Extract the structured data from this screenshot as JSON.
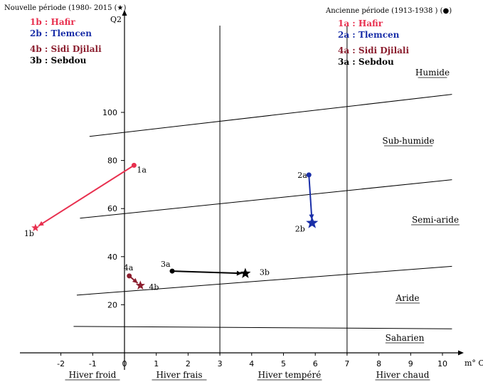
{
  "chart_data": {
    "type": "scatter",
    "xlabel": "m° C",
    "ylabel": "Q2",
    "xlim": [
      -3,
      11
    ],
    "ylim": [
      0,
      120
    ],
    "x_ticks": [
      "-2",
      "-1",
      "0",
      "1",
      "2",
      "3",
      "4",
      "5",
      "6",
      "7",
      "8",
      "9",
      "10"
    ],
    "y_ticks": [
      "20",
      "40",
      "60",
      "80",
      "100"
    ],
    "legend_new": {
      "title": "Nouvelle période (1980- 2015 (★)",
      "items": [
        {
          "label": "1b : Hafir",
          "color": "#e8304f"
        },
        {
          "label": "2b : Tlemcen",
          "color": "#1a2fa8"
        },
        {
          "label": "4b : Sidi Djilali",
          "color": "#8b1e2e"
        },
        {
          "label": "3b : Sebdou",
          "color": "#000000"
        }
      ]
    },
    "legend_old": {
      "title": "Ancienne période (1913-1938 ) (●)",
      "items": [
        {
          "label": "1a : Hafir",
          "color": "#e8304f"
        },
        {
          "label": "2a : Tlemcen",
          "color": "#1a2fa8"
        },
        {
          "label": "4a : Sidi Djilali",
          "color": "#8b1e2e"
        },
        {
          "label": "3a : Sebdou",
          "color": "#000000"
        }
      ]
    },
    "bioclimatic_zones": [
      "Humide",
      "Sub-humide",
      "Semi-aride",
      "Aride",
      "Saharien"
    ],
    "winter_types": [
      "Hiver froid",
      "Hiver frais",
      "Hiver tempéré",
      "Hiver chaud"
    ],
    "winter_boundaries": [
      3,
      7
    ],
    "zone_boundaries": [
      {
        "x1": -1.1,
        "y1": 90,
        "x2": 10.3,
        "y2": 107.5
      },
      {
        "x1": -1.4,
        "y1": 56,
        "x2": 10.3,
        "y2": 72
      },
      {
        "x1": -1.5,
        "y1": 24,
        "x2": 10.3,
        "y2": 36
      },
      {
        "x1": -1.6,
        "y1": 11,
        "x2": 10.3,
        "y2": 10
      }
    ],
    "stations": [
      {
        "name": "Hafir",
        "color": "#e8304f",
        "old": {
          "label": "1a",
          "x": 0.3,
          "y": 78
        },
        "new": {
          "label": "1b",
          "x": -2.8,
          "y": 52
        }
      },
      {
        "name": "Tlemcen",
        "color": "#1a2fa8",
        "old": {
          "label": "2a",
          "x": 5.8,
          "y": 74
        },
        "new": {
          "label": "2b",
          "x": 5.9,
          "y": 54
        }
      },
      {
        "name": "Sidi Djilali",
        "color": "#8b1e2e",
        "old": {
          "label": "4a",
          "x": 0.15,
          "y": 32
        },
        "new": {
          "label": "4b",
          "x": 0.5,
          "y": 28
        }
      },
      {
        "name": "Sebdou",
        "color": "#000000",
        "old": {
          "label": "3a",
          "x": 1.5,
          "y": 34
        },
        "new": {
          "label": "3b",
          "x": 3.8,
          "y": 33
        }
      }
    ],
    "grid": false
  }
}
